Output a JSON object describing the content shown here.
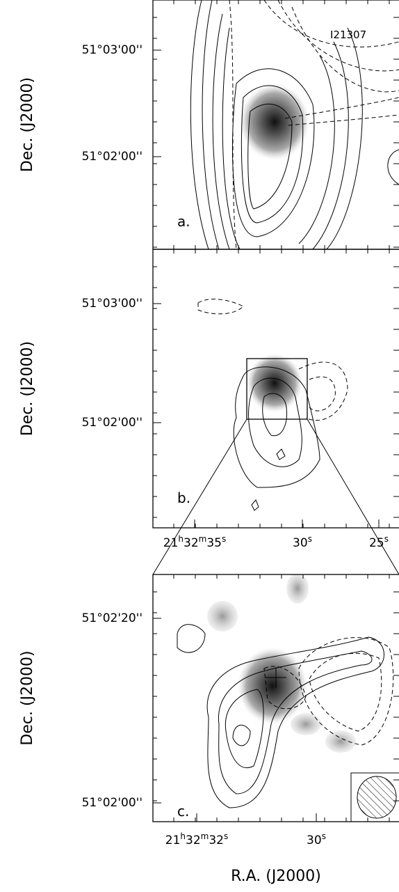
{
  "panels": [
    {
      "label": "a.",
      "y_axis_label": "Dec. (J2000)",
      "yticks": [
        "51°03'00''",
        "51°02'00''"
      ],
      "annotation": "I21307"
    },
    {
      "label": "b.",
      "y_axis_label": "Dec. (J2000)",
      "yticks": [
        "51°03'00''",
        "51°02'00''"
      ],
      "xticks": [
        [
          "21",
          "h",
          "32",
          "m",
          "35",
          "s"
        ],
        [
          "30",
          "s"
        ],
        [
          "25",
          "s"
        ]
      ]
    },
    {
      "label": "c.",
      "y_axis_label": "Dec. (J2000)",
      "yticks": [
        "51°02'20''",
        "51°02'00''"
      ],
      "xticks": [
        [
          "21",
          "h",
          "32",
          "m",
          "32",
          "s"
        ],
        [
          "30",
          "s"
        ]
      ],
      "x_axis_label": "R.A. (J2000)"
    }
  ]
}
